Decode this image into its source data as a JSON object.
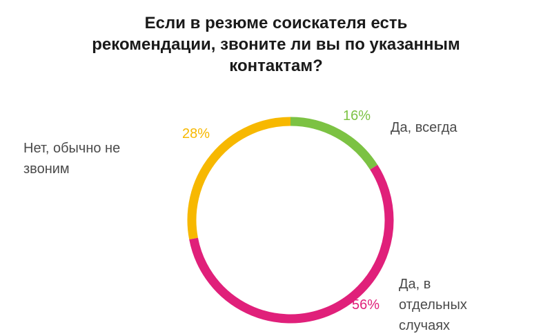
{
  "chart_data": {
    "type": "pie",
    "title_lines": [
      "Если в резюме соискателя есть",
      "рекомендации, звоните ли вы по указанным",
      "контактам?"
    ],
    "categories": [
      "Да, всегда",
      "Да, в отдельных случаях",
      "Нет, обычно не звоним"
    ],
    "values": [
      16,
      56,
      28
    ],
    "value_labels": [
      "16%",
      "56%",
      "28%"
    ],
    "category_label_lines": [
      [
        "Да, всегда"
      ],
      [
        "Да, в",
        "отдельных",
        "случаях"
      ],
      [
        "Нет, обычно не",
        "звоним"
      ]
    ],
    "colors": [
      "#7cc243",
      "#e0207a",
      "#f7b800"
    ],
    "legend": "none"
  }
}
